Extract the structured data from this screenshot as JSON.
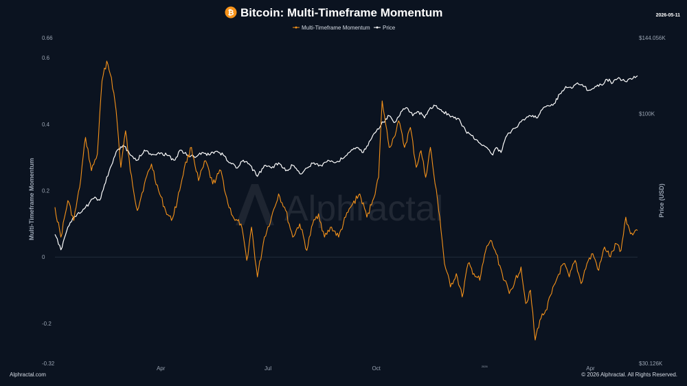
{
  "header": {
    "title": "Bitcoin: Multi-Timeframe Momentum",
    "date": "2026-05-11",
    "logo_icon": "bitcoin-icon",
    "logo_glyph": "₿"
  },
  "legend": {
    "items": [
      {
        "label": "Multi-Timeframe Momentum",
        "color": "#f7931a"
      },
      {
        "label": "Price",
        "color": "#ffffff"
      }
    ]
  },
  "watermark": "Alphractal",
  "footer": {
    "left": "Alphractal.com",
    "right": "© 2026 Alphractal. All Rights Reserved."
  },
  "chart_data": {
    "type": "line",
    "title": "Bitcoin: Multi-Timeframe Momentum",
    "grid": false,
    "legend_position": "top-center",
    "colors": {
      "background": "#0b1320",
      "momentum": "#f7931a",
      "price": "#ffffff",
      "zero_line": "#2a3444"
    },
    "x_axis": {
      "ticks": [
        {
          "date": "2025-04-01",
          "label": "Apr"
        },
        {
          "date": "2025-07-01",
          "label": "Jul"
        },
        {
          "date": "2025-10-01",
          "label": "Oct"
        },
        {
          "date": "2026-01-01",
          "label": "2026",
          "small": true
        },
        {
          "date": "2026-04-01",
          "label": "Apr"
        }
      ],
      "range": [
        "2025-01-01",
        "2026-05-11"
      ]
    },
    "left_axis": {
      "label": "Multi-Timeframe Momentum",
      "range": [
        -0.32,
        0.66
      ],
      "ticks": [
        {
          "value": 0.66,
          "label": "0.66"
        },
        {
          "value": 0.6,
          "label": "0.6"
        },
        {
          "value": 0.4,
          "label": "0.4"
        },
        {
          "value": 0.2,
          "label": "0.2"
        },
        {
          "value": 0,
          "label": "0"
        },
        {
          "value": -0.2,
          "label": "-0.2"
        },
        {
          "value": -0.32,
          "label": "-0.32"
        }
      ]
    },
    "right_axis": {
      "label": "Price (USD)",
      "scale": "log",
      "range": [
        30126,
        144056
      ],
      "ticks": [
        {
          "value": 144056,
          "label": "$144.056K"
        },
        {
          "value": 100000,
          "label": "$100K"
        },
        {
          "value": 30126,
          "label": "$30.126K"
        }
      ]
    },
    "series": [
      {
        "name": "Multi-Timeframe Momentum",
        "axis": "left",
        "color": "#f7931a",
        "points": [
          [
            "2025-01-01",
            0.15
          ],
          [
            "2025-01-06",
            0.06
          ],
          [
            "2025-01-12",
            0.17
          ],
          [
            "2025-01-17",
            0.11
          ],
          [
            "2025-01-22",
            0.21
          ],
          [
            "2025-01-27",
            0.36
          ],
          [
            "2025-02-01",
            0.26
          ],
          [
            "2025-02-06",
            0.31
          ],
          [
            "2025-02-10",
            0.53
          ],
          [
            "2025-02-14",
            0.59
          ],
          [
            "2025-02-18",
            0.54
          ],
          [
            "2025-02-22",
            0.44
          ],
          [
            "2025-02-26",
            0.27
          ],
          [
            "2025-03-02",
            0.38
          ],
          [
            "2025-03-06",
            0.26
          ],
          [
            "2025-03-12",
            0.14
          ],
          [
            "2025-03-18",
            0.22
          ],
          [
            "2025-03-24",
            0.28
          ],
          [
            "2025-03-30",
            0.2
          ],
          [
            "2025-04-05",
            0.14
          ],
          [
            "2025-04-10",
            0.11
          ],
          [
            "2025-04-15",
            0.17
          ],
          [
            "2025-04-21",
            0.27
          ],
          [
            "2025-04-27",
            0.33
          ],
          [
            "2025-05-03",
            0.23
          ],
          [
            "2025-05-09",
            0.29
          ],
          [
            "2025-05-15",
            0.22
          ],
          [
            "2025-05-22",
            0.26
          ],
          [
            "2025-05-28",
            0.16
          ],
          [
            "2025-06-03",
            0.11
          ],
          [
            "2025-06-08",
            0.1
          ],
          [
            "2025-06-13",
            -0.01
          ],
          [
            "2025-06-17",
            0.09
          ],
          [
            "2025-06-22",
            -0.06
          ],
          [
            "2025-06-28",
            0.06
          ],
          [
            "2025-07-04",
            0.12
          ],
          [
            "2025-07-10",
            0.19
          ],
          [
            "2025-07-16",
            0.14
          ],
          [
            "2025-07-22",
            0.06
          ],
          [
            "2025-07-28",
            0.1
          ],
          [
            "2025-08-03",
            0.02
          ],
          [
            "2025-08-08",
            0.1
          ],
          [
            "2025-08-13",
            0.13
          ],
          [
            "2025-08-18",
            0.06
          ],
          [
            "2025-08-24",
            0.09
          ],
          [
            "2025-08-30",
            0.06
          ],
          [
            "2025-09-05",
            0.12
          ],
          [
            "2025-09-11",
            0.16
          ],
          [
            "2025-09-17",
            0.19
          ],
          [
            "2025-09-23",
            0.12
          ],
          [
            "2025-09-28",
            0.17
          ],
          [
            "2025-10-03",
            0.24
          ],
          [
            "2025-10-06",
            0.47
          ],
          [
            "2025-10-09",
            0.4
          ],
          [
            "2025-10-12",
            0.33
          ],
          [
            "2025-10-16",
            0.36
          ],
          [
            "2025-10-20",
            0.41
          ],
          [
            "2025-10-25",
            0.33
          ],
          [
            "2025-10-30",
            0.39
          ],
          [
            "2025-11-04",
            0.27
          ],
          [
            "2025-11-08",
            0.32
          ],
          [
            "2025-11-12",
            0.24
          ],
          [
            "2025-11-16",
            0.33
          ],
          [
            "2025-11-20",
            0.22
          ],
          [
            "2025-11-24",
            0.12
          ],
          [
            "2025-11-28",
            -0.02
          ],
          [
            "2025-12-03",
            -0.09
          ],
          [
            "2025-12-08",
            -0.05
          ],
          [
            "2025-12-13",
            -0.12
          ],
          [
            "2025-12-18",
            -0.02
          ],
          [
            "2025-12-23",
            -0.05
          ],
          [
            "2025-12-28",
            -0.07
          ],
          [
            "2026-01-02",
            0.02
          ],
          [
            "2026-01-06",
            0.05
          ],
          [
            "2026-01-10",
            0.02
          ],
          [
            "2026-01-16",
            -0.05
          ],
          [
            "2026-01-22",
            -0.11
          ],
          [
            "2026-01-27",
            -0.07
          ],
          [
            "2026-02-01",
            -0.03
          ],
          [
            "2026-02-05",
            -0.14
          ],
          [
            "2026-02-09",
            -0.1
          ],
          [
            "2026-02-13",
            -0.25
          ],
          [
            "2026-02-17",
            -0.19
          ],
          [
            "2026-02-22",
            -0.16
          ],
          [
            "2026-02-27",
            -0.11
          ],
          [
            "2026-03-04",
            -0.06
          ],
          [
            "2026-03-09",
            -0.02
          ],
          [
            "2026-03-14",
            -0.06
          ],
          [
            "2026-03-19",
            -0.01
          ],
          [
            "2026-03-24",
            -0.08
          ],
          [
            "2026-03-29",
            -0.02
          ],
          [
            "2026-04-03",
            0.01
          ],
          [
            "2026-04-08",
            -0.04
          ],
          [
            "2026-04-13",
            0.03
          ],
          [
            "2026-04-18",
            0.0
          ],
          [
            "2026-04-23",
            0.04
          ],
          [
            "2026-04-27",
            0.02
          ],
          [
            "2026-05-01",
            0.12
          ],
          [
            "2026-05-05",
            0.07
          ],
          [
            "2026-05-09",
            0.08
          ],
          [
            "2026-05-11",
            0.08
          ]
        ]
      },
      {
        "name": "Price",
        "axis": "right",
        "color": "#ffffff",
        "points": [
          [
            "2025-01-01",
            56000
          ],
          [
            "2025-01-06",
            52000
          ],
          [
            "2025-01-12",
            58000
          ],
          [
            "2025-01-18",
            61000
          ],
          [
            "2025-01-24",
            62500
          ],
          [
            "2025-01-30",
            65000
          ],
          [
            "2025-02-04",
            67000
          ],
          [
            "2025-02-08",
            66000
          ],
          [
            "2025-02-12",
            71000
          ],
          [
            "2025-02-18",
            78000
          ],
          [
            "2025-02-23",
            84000
          ],
          [
            "2025-02-28",
            86000
          ],
          [
            "2025-03-06",
            82000
          ],
          [
            "2025-03-12",
            80000
          ],
          [
            "2025-03-18",
            84000
          ],
          [
            "2025-03-24",
            82000
          ],
          [
            "2025-03-30",
            83000
          ],
          [
            "2025-04-06",
            82000
          ],
          [
            "2025-04-12",
            80000
          ],
          [
            "2025-04-18",
            84000
          ],
          [
            "2025-04-24",
            82000
          ],
          [
            "2025-04-30",
            81000
          ],
          [
            "2025-05-06",
            83000
          ],
          [
            "2025-05-12",
            82000
          ],
          [
            "2025-05-18",
            83500
          ],
          [
            "2025-05-24",
            82000
          ],
          [
            "2025-05-30",
            79000
          ],
          [
            "2025-06-05",
            77000
          ],
          [
            "2025-06-10",
            80000
          ],
          [
            "2025-06-16",
            78000
          ],
          [
            "2025-06-22",
            74000
          ],
          [
            "2025-06-28",
            78000
          ],
          [
            "2025-07-04",
            77000
          ],
          [
            "2025-07-10",
            79000
          ],
          [
            "2025-07-16",
            76000
          ],
          [
            "2025-07-22",
            78000
          ],
          [
            "2025-07-28",
            75000
          ],
          [
            "2025-08-03",
            77000
          ],
          [
            "2025-08-09",
            79000
          ],
          [
            "2025-08-15",
            78000
          ],
          [
            "2025-08-21",
            80000
          ],
          [
            "2025-08-27",
            79000
          ],
          [
            "2025-09-02",
            80500
          ],
          [
            "2025-09-08",
            83000
          ],
          [
            "2025-09-14",
            85000
          ],
          [
            "2025-09-20",
            83000
          ],
          [
            "2025-09-26",
            88000
          ],
          [
            "2025-10-02",
            93000
          ],
          [
            "2025-10-07",
            96000
          ],
          [
            "2025-10-12",
            99000
          ],
          [
            "2025-10-17",
            96000
          ],
          [
            "2025-10-22",
            101000
          ],
          [
            "2025-10-27",
            103000
          ],
          [
            "2025-11-01",
            99000
          ],
          [
            "2025-11-06",
            101000
          ],
          [
            "2025-11-11",
            98000
          ],
          [
            "2025-11-16",
            103000
          ],
          [
            "2025-11-21",
            104000
          ],
          [
            "2025-11-26",
            101000
          ],
          [
            "2025-12-01",
            100000
          ],
          [
            "2025-12-06",
            98000
          ],
          [
            "2025-12-11",
            97000
          ],
          [
            "2025-12-16",
            92000
          ],
          [
            "2025-12-21",
            90000
          ],
          [
            "2025-12-26",
            88000
          ],
          [
            "2025-12-31",
            86000
          ],
          [
            "2026-01-05",
            84000
          ],
          [
            "2026-01-08",
            82000
          ],
          [
            "2026-01-11",
            85000
          ],
          [
            "2026-01-15",
            83000
          ],
          [
            "2026-01-20",
            90000
          ],
          [
            "2026-01-25",
            93000
          ],
          [
            "2026-01-30",
            95000
          ],
          [
            "2026-02-04",
            97000
          ],
          [
            "2026-02-09",
            99000
          ],
          [
            "2026-02-14",
            98000
          ],
          [
            "2026-02-19",
            102000
          ],
          [
            "2026-02-24",
            104000
          ],
          [
            "2026-03-01",
            105000
          ],
          [
            "2026-03-06",
            110000
          ],
          [
            "2026-03-11",
            114000
          ],
          [
            "2026-03-16",
            113000
          ],
          [
            "2026-03-21",
            116000
          ],
          [
            "2026-03-26",
            114000
          ],
          [
            "2026-03-31",
            112000
          ],
          [
            "2026-04-05",
            114000
          ],
          [
            "2026-04-10",
            115000
          ],
          [
            "2026-04-15",
            118000
          ],
          [
            "2026-04-20",
            116000
          ],
          [
            "2026-04-25",
            119000
          ],
          [
            "2026-04-30",
            117000
          ],
          [
            "2026-05-05",
            118500
          ],
          [
            "2026-05-11",
            120000
          ]
        ]
      }
    ]
  }
}
